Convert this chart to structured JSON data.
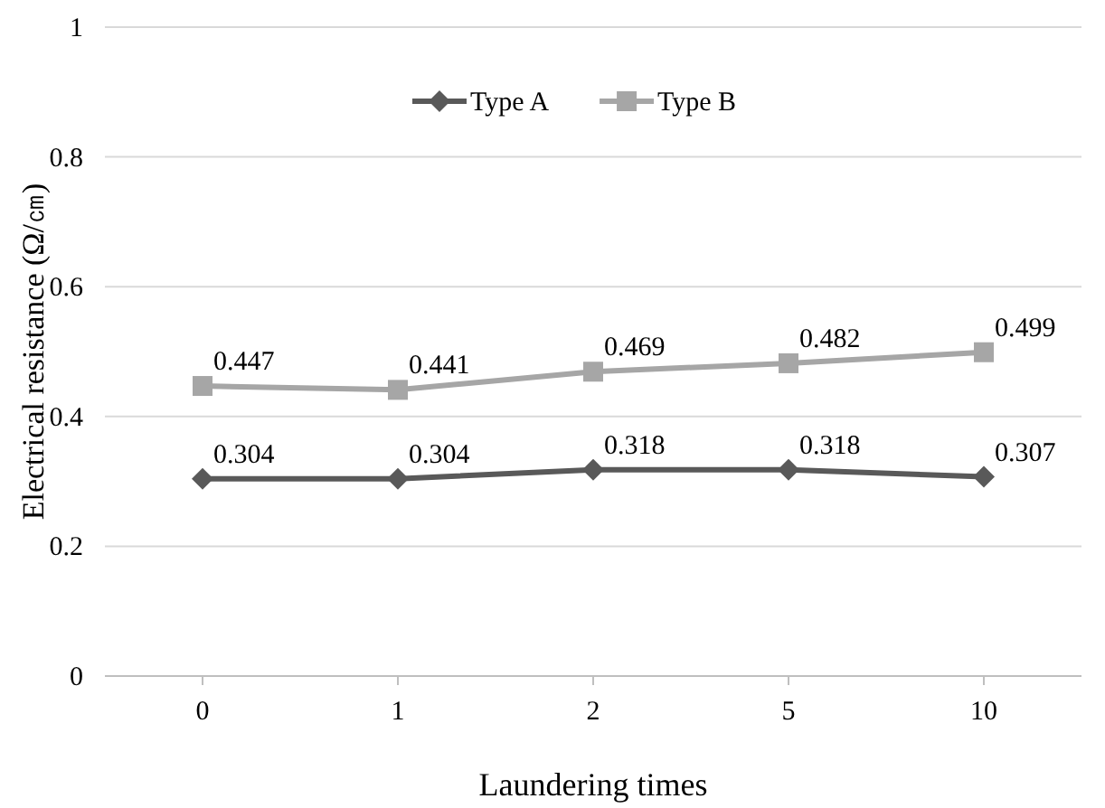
{
  "chart_data": {
    "type": "line",
    "xlabel": "Laundering times",
    "ylabel": "Electrical resistance (Ω/㎝)",
    "categories": [
      "0",
      "1",
      "2",
      "5",
      "10"
    ],
    "series": [
      {
        "name": "Type A",
        "color": "#595959",
        "marker": "diamond",
        "values": [
          0.304,
          0.304,
          0.318,
          0.318,
          0.307
        ]
      },
      {
        "name": "Type B",
        "color": "#a6a6a6",
        "marker": "square",
        "values": [
          0.447,
          0.441,
          0.469,
          0.482,
          0.499
        ]
      }
    ],
    "ylim": [
      0,
      1
    ],
    "yticks": [
      0,
      0.2,
      0.4,
      0.6,
      0.8,
      1
    ],
    "grid": "y",
    "legend": "top",
    "data_labels": true
  }
}
